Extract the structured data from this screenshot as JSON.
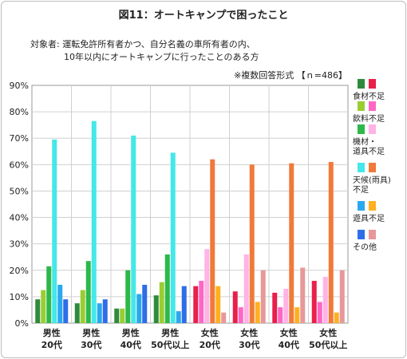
{
  "chart_data": {
    "type": "bar",
    "title": "図11：オートキャンプで困ったこと",
    "subject_label": "対象者:",
    "subject_line1": "運転免許所有者かつ、自分名義の車所有者の内、",
    "subject_line2": "10年以内にオートキャンプに行ったことのある方",
    "note": "※複数回答形式 【ｎ=486】",
    "ylim": [
      0,
      90
    ],
    "yticks": [
      "0%",
      "10%",
      "20%",
      "30%",
      "40%",
      "50%",
      "60%",
      "70%",
      "80%",
      "90%"
    ],
    "categories": [
      [
        "男性",
        "20代"
      ],
      [
        "男性",
        "30代"
      ],
      [
        "男性",
        "40代"
      ],
      [
        "男性",
        "50代以上"
      ],
      [
        "女性",
        "20代"
      ],
      [
        "女性",
        "30代"
      ],
      [
        "女性",
        "40代"
      ],
      [
        "女性",
        "50代以上"
      ]
    ],
    "series": [
      {
        "name": "食材不足",
        "male_color": "#2e8b3c",
        "female_color": "#e8204a",
        "values": [
          9,
          7.5,
          5.5,
          10.5,
          14,
          12,
          11.5,
          16
        ]
      },
      {
        "name": "飲料不足",
        "male_color": "#9acd32",
        "female_color": "#ff66c4",
        "values": [
          12.5,
          12.5,
          5.5,
          15.5,
          16,
          6,
          6,
          8
        ]
      },
      {
        "name": "機材・道具不足",
        "male_color": "#2db84a",
        "female_color": "#ffb3e6",
        "values": [
          21.5,
          23.5,
          20,
          26,
          28,
          26,
          13,
          17.5
        ]
      },
      {
        "name": "天候(雨具)不足",
        "male_color": "#44e8e8",
        "female_color": "#f07a3a",
        "values": [
          69.5,
          76.5,
          71,
          64.5,
          62,
          60,
          60.5,
          61
        ]
      },
      {
        "name": "遊具不足",
        "male_color": "#29a8ef",
        "female_color": "#ffb020",
        "values": [
          14.5,
          7.5,
          11,
          4.5,
          14,
          8,
          6,
          4
        ]
      },
      {
        "name": "その他",
        "male_color": "#2d6ee8",
        "female_color": "#e89898",
        "values": [
          9,
          9,
          14.5,
          14,
          4,
          20,
          21,
          20
        ]
      }
    ],
    "legend_labels": [
      [
        "食材不足"
      ],
      [
        "飲料不足"
      ],
      [
        "機材・",
        "道具不足"
      ],
      [
        "天候(雨具)",
        "不足"
      ],
      [
        "遊具不足"
      ],
      [
        "その他"
      ]
    ],
    "legend_placement": "right",
    "grid": true
  }
}
